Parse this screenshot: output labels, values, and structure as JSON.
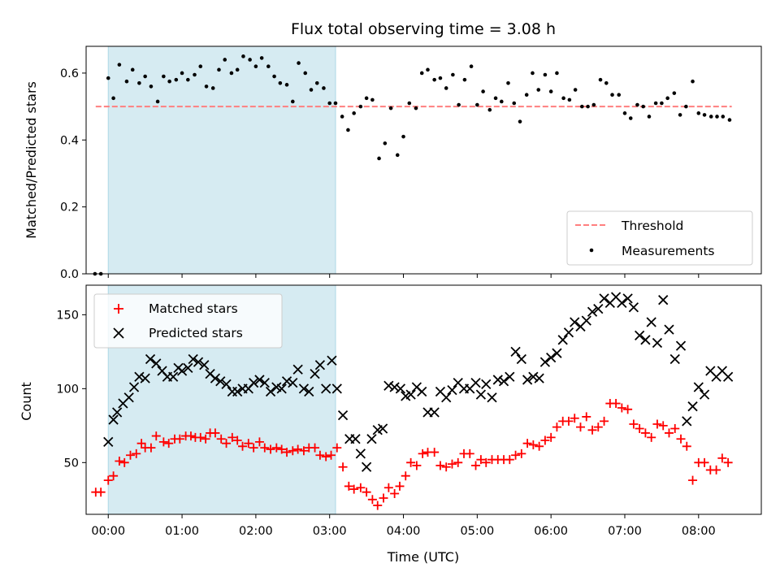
{
  "chart_data": [
    {
      "type": "scatter",
      "title": "Flux total observing time = 3.08 h",
      "xlabel": "",
      "ylabel": "Matched/Predicted stars",
      "xlim": [
        -0.3,
        8.85
      ],
      "ylim": [
        0.0,
        0.68
      ],
      "yticks": [
        0.0,
        0.2,
        0.4,
        0.6
      ],
      "shaded_span": [
        0.0,
        3.08
      ],
      "threshold": 0.5,
      "threshold_x_range": [
        -0.17,
        8.45
      ],
      "legend_position": "lower right",
      "colors": {
        "threshold": "#ff7f7f",
        "measurements": "#000000",
        "span": "#add8e6"
      },
      "series": [
        {
          "name": "Threshold",
          "style": "dashed-line"
        },
        {
          "name": "Measurements",
          "style": "dot",
          "x": [
            -0.18,
            -0.1,
            0.0,
            0.07,
            0.15,
            0.25,
            0.33,
            0.42,
            0.5,
            0.58,
            0.67,
            0.75,
            0.83,
            0.92,
            1.0,
            1.08,
            1.17,
            1.25,
            1.33,
            1.42,
            1.5,
            1.58,
            1.67,
            1.75,
            1.83,
            1.92,
            2.0,
            2.08,
            2.17,
            2.25,
            2.33,
            2.42,
            2.5,
            2.58,
            2.67,
            2.75,
            2.83,
            2.92,
            3.0,
            3.08,
            3.17,
            3.25,
            3.33,
            3.42,
            3.5,
            3.58,
            3.67,
            3.75,
            3.83,
            3.92,
            4.0,
            4.08,
            4.17,
            4.25,
            4.33,
            4.42,
            4.5,
            4.58,
            4.67,
            4.75,
            4.83,
            4.92,
            5.0,
            5.08,
            5.17,
            5.25,
            5.33,
            5.42,
            5.5,
            5.58,
            5.67,
            5.75,
            5.83,
            5.92,
            6.0,
            6.08,
            6.17,
            6.25,
            6.33,
            6.42,
            6.5,
            6.58,
            6.67,
            6.75,
            6.83,
            6.92,
            7.0,
            7.08,
            7.17,
            7.25,
            7.33,
            7.42,
            7.5,
            7.58,
            7.67,
            7.75,
            7.83,
            7.92,
            8.0,
            8.08,
            8.17,
            8.25,
            8.33,
            8.42
          ],
          "y": [
            0.0,
            0.0,
            0.585,
            0.525,
            0.625,
            0.575,
            0.61,
            0.57,
            0.59,
            0.56,
            0.515,
            0.59,
            0.575,
            0.58,
            0.6,
            0.58,
            0.595,
            0.62,
            0.56,
            0.555,
            0.61,
            0.64,
            0.6,
            0.61,
            0.65,
            0.64,
            0.62,
            0.645,
            0.62,
            0.59,
            0.57,
            0.565,
            0.515,
            0.63,
            0.6,
            0.55,
            0.57,
            0.555,
            0.51,
            0.51,
            0.47,
            0.43,
            0.48,
            0.5,
            0.525,
            0.52,
            0.345,
            0.39,
            0.495,
            0.355,
            0.41,
            0.51,
            0.495,
            0.6,
            0.61,
            0.58,
            0.585,
            0.555,
            0.595,
            0.505,
            0.58,
            0.62,
            0.505,
            0.545,
            0.49,
            0.525,
            0.515,
            0.57,
            0.51,
            0.455,
            0.535,
            0.6,
            0.55,
            0.595,
            0.545,
            0.6,
            0.525,
            0.52,
            0.55,
            0.5,
            0.5,
            0.505,
            0.58,
            0.57,
            0.535,
            0.535,
            0.48,
            0.465,
            0.505,
            0.5,
            0.47,
            0.51,
            0.51,
            0.525,
            0.54,
            0.475,
            0.5,
            0.575,
            0.48,
            0.475,
            0.47,
            0.47,
            0.47,
            0.46
          ]
        }
      ]
    },
    {
      "type": "scatter",
      "title": "",
      "xlabel": "Time (UTC)",
      "ylabel": "Count",
      "xlim": [
        -0.3,
        8.85
      ],
      "ylim": [
        15,
        170
      ],
      "xticks": [
        "00:00",
        "01:00",
        "02:00",
        "03:00",
        "04:00",
        "05:00",
        "06:00",
        "07:00",
        "08:00"
      ],
      "xtick_values": [
        0,
        1,
        2,
        3,
        4,
        5,
        6,
        7,
        8
      ],
      "yticks": [
        50,
        100,
        150
      ],
      "shaded_span": [
        0.0,
        3.08
      ],
      "legend_position": "upper left",
      "colors": {
        "matched": "#ff0000",
        "predicted": "#000000",
        "span": "#add8e6"
      },
      "series": [
        {
          "name": "Matched stars",
          "marker": "plus",
          "x": [
            -0.17,
            -0.1,
            0.0,
            0.07,
            0.15,
            0.22,
            0.3,
            0.38,
            0.45,
            0.5,
            0.58,
            0.65,
            0.75,
            0.82,
            0.9,
            0.97,
            1.05,
            1.12,
            1.18,
            1.25,
            1.32,
            1.38,
            1.45,
            1.53,
            1.6,
            1.68,
            1.75,
            1.82,
            1.9,
            1.97,
            2.05,
            2.12,
            2.2,
            2.28,
            2.35,
            2.42,
            2.5,
            2.57,
            2.65,
            2.72,
            2.8,
            2.87,
            2.95,
            3.02,
            3.1,
            3.18,
            3.26,
            3.33,
            3.42,
            3.5,
            3.58,
            3.65,
            3.73,
            3.8,
            3.88,
            3.95,
            4.03,
            4.1,
            4.18,
            4.26,
            4.33,
            4.42,
            4.5,
            4.58,
            4.66,
            4.74,
            4.82,
            4.9,
            4.98,
            5.05,
            5.12,
            5.2,
            5.28,
            5.36,
            5.44,
            5.52,
            5.6,
            5.68,
            5.76,
            5.84,
            5.92,
            6.0,
            6.08,
            6.16,
            6.24,
            6.32,
            6.4,
            6.48,
            6.56,
            6.64,
            6.72,
            6.8,
            6.88,
            6.96,
            7.04,
            7.12,
            7.2,
            7.28,
            7.36,
            7.44,
            7.52,
            7.6,
            7.68,
            7.76,
            7.84,
            7.92,
            8.0,
            8.08,
            8.16,
            8.24,
            8.32,
            8.4
          ],
          "y": [
            30,
            30,
            38,
            41,
            51,
            50,
            55,
            56,
            63,
            60,
            60,
            68,
            64,
            63,
            66,
            66,
            68,
            68,
            67,
            67,
            66,
            70,
            70,
            66,
            63,
            67,
            65,
            61,
            63,
            60,
            64,
            60,
            59,
            60,
            59,
            57,
            58,
            59,
            58,
            60,
            60,
            55,
            54,
            55,
            60,
            47,
            34,
            32,
            33,
            30,
            25,
            21,
            26,
            33,
            29,
            34,
            41,
            50,
            48,
            56,
            57,
            57,
            48,
            47,
            49,
            50,
            56,
            56,
            48,
            52,
            50,
            52,
            52,
            52,
            52,
            55,
            56,
            63,
            62,
            61,
            65,
            67,
            74,
            78,
            78,
            80,
            74,
            81,
            72,
            74,
            78,
            90,
            90,
            87,
            86,
            76,
            73,
            70,
            67,
            76,
            75,
            70,
            73,
            66,
            61,
            38,
            50,
            50,
            45,
            45,
            53,
            50
          ]
        },
        {
          "name": "Predicted stars",
          "marker": "x",
          "x": [
            0.0,
            0.07,
            0.12,
            0.2,
            0.28,
            0.35,
            0.42,
            0.5,
            0.57,
            0.65,
            0.73,
            0.8,
            0.88,
            0.95,
            1.0,
            1.08,
            1.15,
            1.22,
            1.3,
            1.38,
            1.45,
            1.52,
            1.6,
            1.68,
            1.75,
            1.82,
            1.9,
            1.97,
            2.05,
            2.12,
            2.2,
            2.28,
            2.35,
            2.42,
            2.5,
            2.57,
            2.65,
            2.72,
            2.8,
            2.87,
            2.95,
            3.03,
            3.1,
            3.18,
            3.27,
            3.35,
            3.42,
            3.5,
            3.57,
            3.65,
            3.72,
            3.8,
            3.88,
            3.96,
            4.03,
            4.1,
            4.18,
            4.25,
            4.33,
            4.42,
            4.5,
            4.58,
            4.66,
            4.74,
            4.82,
            4.9,
            4.98,
            5.05,
            5.12,
            5.2,
            5.28,
            5.36,
            5.44,
            5.52,
            5.6,
            5.68,
            5.76,
            5.84,
            5.92,
            6.0,
            6.08,
            6.16,
            6.24,
            6.32,
            6.4,
            6.48,
            6.56,
            6.64,
            6.72,
            6.8,
            6.88,
            6.96,
            7.04,
            7.12,
            7.2,
            7.28,
            7.36,
            7.44,
            7.52,
            7.6,
            7.68,
            7.76,
            7.84,
            7.92,
            8.0,
            8.08,
            8.16,
            8.24,
            8.32,
            8.4
          ],
          "y": [
            64,
            79,
            84,
            90,
            94,
            101,
            108,
            107,
            120,
            117,
            112,
            108,
            108,
            114,
            112,
            114,
            120,
            118,
            116,
            110,
            107,
            105,
            103,
            98,
            98,
            100,
            100,
            104,
            106,
            104,
            98,
            101,
            100,
            105,
            104,
            113,
            100,
            98,
            110,
            116,
            100,
            119,
            100,
            82,
            66,
            66,
            56,
            47,
            66,
            72,
            73,
            102,
            101,
            100,
            95,
            96,
            101,
            98,
            84,
            84,
            98,
            94,
            99,
            104,
            100,
            100,
            104,
            96,
            103,
            94,
            106,
            105,
            108,
            125,
            120,
            106,
            108,
            107,
            118,
            121,
            124,
            133,
            138,
            145,
            142,
            146,
            152,
            154,
            161,
            158,
            162,
            158,
            161,
            155,
            136,
            133,
            145,
            131,
            160,
            140,
            120,
            129,
            78,
            88,
            101,
            96,
            112,
            108,
            112,
            108
          ]
        }
      ]
    }
  ]
}
